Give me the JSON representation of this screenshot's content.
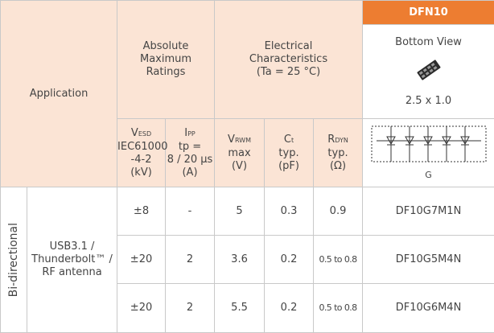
{
  "header": {
    "application": "Application",
    "absolute_maximum_ratings": [
      "Absolute",
      "Maximum",
      "Ratings"
    ],
    "electrical_characteristics": [
      "Electrical",
      "Characteristics",
      "(Ta = 25 °C)"
    ],
    "package": {
      "name": "DFN10",
      "view": "Bottom View",
      "size": "2.5 x 1.0",
      "circuit_label": "G"
    },
    "columns": [
      {
        "symbol": "V",
        "subscript": "ESD",
        "lines": [
          "IEC61000",
          "-4-2",
          "(kV)"
        ]
      },
      {
        "symbol": "I",
        "subscript": "PP",
        "lines": [
          "tp =",
          "8 / 20 μs",
          "(A)"
        ]
      },
      {
        "symbol": "V",
        "subscript": "RWM",
        "lines": [
          "max",
          "(V)"
        ]
      },
      {
        "symbol": "C",
        "subscript": "t",
        "lines": [
          "typ.",
          "(pF)"
        ]
      },
      {
        "symbol": "R",
        "subscript": "DYN",
        "lines": [
          "typ.",
          "(Ω)"
        ]
      }
    ]
  },
  "group": {
    "direction": "Bi-directional",
    "application": [
      "USB3.1 /",
      "Thunderbolt™ /",
      "RF antenna"
    ]
  },
  "rows": [
    [
      "±8",
      "-",
      "5",
      "0.3",
      "0.9",
      "DF10G7M1N"
    ],
    [
      "±20",
      "2",
      "3.6",
      "0.2",
      "0.5 to 0.8",
      "DF10G5M4N"
    ],
    [
      "±20",
      "2",
      "5.5",
      "0.2",
      "0.5 to 0.8",
      "DF10G6M4N"
    ]
  ]
}
